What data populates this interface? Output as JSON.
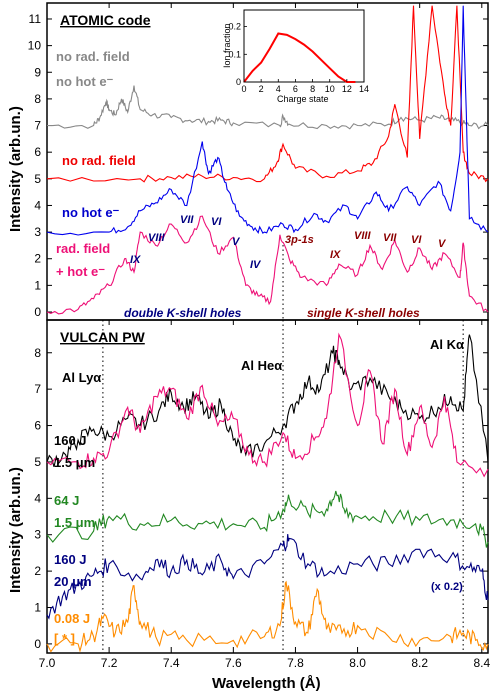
{
  "figure": {
    "xlabel": "Wavelength (Å)",
    "ylabel_top": "Intensity (arb.un.)",
    "ylabel_bottom": "Intensity (arb.un.)",
    "x_ticks": [
      "7.0",
      "7.2",
      "7.4",
      "7.6",
      "7.8",
      "8.0",
      "8.2",
      "8.4"
    ],
    "top_y_ticks": [
      "0",
      "1",
      "2",
      "3",
      "4",
      "5",
      "6",
      "7",
      "8",
      "9",
      "10",
      "11"
    ],
    "bottom_y_ticks": [
      "0",
      "1",
      "2",
      "3",
      "4",
      "5",
      "6",
      "7",
      "8"
    ]
  },
  "top_panel": {
    "title": "ATOMIC code",
    "labels": {
      "no_rad_gray": "no rad. field",
      "no_hot_gray": "no hot e⁻",
      "no_rad_red": "no rad. field",
      "no_hot_blue": "no hot e⁻",
      "rad_field": "rad. field",
      "hot_e": "+ hot e⁻",
      "double_k": "double K-shell holes",
      "single_k": "single K-shell holes",
      "line_3p1s": "3p-1s"
    },
    "roman_double": [
      "VIII",
      "VII",
      "VI",
      "V",
      "IX",
      "IV"
    ],
    "roman_single": [
      "IX",
      "VIII",
      "VII",
      "VI",
      "V"
    ],
    "inset": {
      "ylabel": "Ion fraction",
      "xlabel": "Charge state",
      "x_ticks": [
        "0",
        "2",
        "4",
        "6",
        "8",
        "10",
        "12",
        "14"
      ],
      "y_ticks": [
        "0",
        "0.1",
        "0.2"
      ]
    }
  },
  "bottom_panel": {
    "title": "VULCAN PW",
    "line_labels": {
      "ly": "Al Lyα",
      "he": "Al Heα",
      "ka": "Al Kα"
    },
    "series_labels": [
      {
        "energy": "160 J",
        "size": "1.5 μm"
      },
      {
        "energy": "64 J",
        "size": "1.5 μm"
      },
      {
        "energy": "160 J",
        "size": "20 μm"
      },
      {
        "energy": "0.08 J",
        "size": "[ * ]"
      }
    ],
    "scale_note": "(x 0.2)"
  },
  "chart_data": [
    {
      "type": "line",
      "title": "ATOMIC code",
      "xlabel": "Wavelength (Å)",
      "ylabel": "Intensity (arb.un.)",
      "xlim": [
        7.0,
        8.42
      ],
      "ylim": [
        -0.3,
        11.6
      ],
      "series": [
        {
          "name": "no rad. field / no hot e⁻",
          "color": "#888888",
          "offset": 7,
          "x": [
            7.0,
            7.15,
            7.17,
            7.19,
            7.2,
            7.22,
            7.24,
            7.26,
            7.28,
            7.3,
            7.34,
            7.4,
            7.46,
            7.52,
            7.56,
            7.6,
            7.75,
            7.76,
            7.78,
            7.9,
            8.0,
            8.1,
            8.14,
            8.2,
            8.26,
            8.3,
            8.34,
            8.36,
            8.42
          ],
          "y": [
            7.0,
            7.0,
            7.3,
            7.9,
            7.6,
            7.4,
            8.0,
            7.5,
            8.5,
            7.6,
            7.4,
            7.3,
            7.2,
            7.15,
            7.2,
            7.1,
            7.0,
            7.35,
            7.05,
            7.0,
            7.0,
            7.05,
            7.3,
            7.2,
            7.3,
            7.2,
            7.1,
            7.0,
            7.0
          ]
        },
        {
          "name": "no rad. field",
          "color": "#ff0000",
          "offset": 5,
          "x": [
            7.0,
            7.3,
            7.4,
            7.5,
            7.6,
            7.7,
            7.74,
            7.76,
            7.8,
            7.9,
            8.0,
            8.05,
            8.1,
            8.12,
            8.16,
            8.18,
            8.2,
            8.24,
            8.28,
            8.3,
            8.32,
            8.34,
            8.36,
            8.42
          ],
          "y": [
            5.0,
            5.0,
            5.05,
            5.1,
            5.05,
            5.0,
            5.6,
            6.3,
            5.4,
            5.1,
            5.3,
            5.6,
            6.6,
            7.8,
            5.8,
            11.5,
            6.5,
            11.5,
            8.2,
            7.0,
            11.5,
            6.0,
            5.2,
            5.0
          ]
        },
        {
          "name": "no hot e⁻",
          "color": "#0000ee",
          "offset": 3,
          "x": [
            7.0,
            7.2,
            7.26,
            7.3,
            7.35,
            7.4,
            7.45,
            7.5,
            7.52,
            7.55,
            7.58,
            7.62,
            7.66,
            7.7,
            7.76,
            7.8,
            7.86,
            7.9,
            7.96,
            8.0,
            8.06,
            8.1,
            8.16,
            8.2,
            8.26,
            8.3,
            8.33,
            8.34,
            8.36,
            8.42
          ],
          "y": [
            3.0,
            3.0,
            3.2,
            3.8,
            4.1,
            4.6,
            4.0,
            6.4,
            5.2,
            5.8,
            4.6,
            3.6,
            3.2,
            3.0,
            3.3,
            3.1,
            3.7,
            3.4,
            4.0,
            3.5,
            4.5,
            3.8,
            4.7,
            4.0,
            4.9,
            3.8,
            6.0,
            11.5,
            3.5,
            3.0
          ]
        },
        {
          "name": "rad. field + hot e⁻",
          "color": "#ee1177",
          "offset": 0,
          "x": [
            7.0,
            7.1,
            7.15,
            7.2,
            7.25,
            7.28,
            7.3,
            7.35,
            7.4,
            7.45,
            7.5,
            7.55,
            7.6,
            7.64,
            7.68,
            7.72,
            7.75,
            7.78,
            7.82,
            7.9,
            7.94,
            8.0,
            8.04,
            8.08,
            8.12,
            8.16,
            8.2,
            8.24,
            8.28,
            8.33,
            8.34,
            8.36,
            8.42
          ],
          "y": [
            0.0,
            0.1,
            0.5,
            1.0,
            2.0,
            1.5,
            3.0,
            2.5,
            3.3,
            2.6,
            3.6,
            2.2,
            2.8,
            1.0,
            0.6,
            0.4,
            2.9,
            2.0,
            1.3,
            1.0,
            1.8,
            1.4,
            2.5,
            1.6,
            2.7,
            1.5,
            2.4,
            1.6,
            2.2,
            1.3,
            2.6,
            0.6,
            0.0
          ]
        }
      ]
    },
    {
      "type": "line",
      "title": "",
      "xlabel": "Charge state",
      "ylabel": "Ion fraction",
      "xlim": [
        0,
        14
      ],
      "ylim": [
        0,
        0.26
      ],
      "series": [
        {
          "name": "",
          "color": "#ff0000",
          "x": [
            0,
            1,
            2,
            3,
            4,
            5,
            6,
            7,
            8,
            9,
            10,
            11,
            12,
            13
          ],
          "y": [
            0,
            0.04,
            0.07,
            0.12,
            0.175,
            0.17,
            0.155,
            0.135,
            0.11,
            0.08,
            0.05,
            0.02,
            0.0,
            0.0
          ]
        }
      ]
    },
    {
      "type": "line",
      "title": "VULCAN PW",
      "xlabel": "Wavelength (Å)",
      "ylabel": "Intensity (arb.un.)",
      "xlim": [
        7.0,
        8.42
      ],
      "ylim": [
        -0.25,
        8.9
      ],
      "series": [
        {
          "name": "160 J 1.5 μm",
          "color": "#000000",
          "x": [
            7.0,
            7.06,
            7.1,
            7.15,
            7.2,
            7.26,
            7.3,
            7.36,
            7.4,
            7.44,
            7.48,
            7.52,
            7.56,
            7.6,
            7.64,
            7.7,
            7.76,
            7.8,
            7.84,
            7.88,
            7.92,
            7.94,
            7.98,
            8.04,
            8.1,
            8.14,
            8.2,
            8.26,
            8.3,
            8.34,
            8.36,
            8.42
          ],
          "y": [
            5.0,
            5.2,
            5.6,
            5.9,
            5.7,
            6.2,
            6.0,
            6.4,
            6.9,
            6.5,
            6.8,
            6.2,
            6.6,
            5.6,
            5.2,
            5.5,
            6.0,
            6.6,
            7.2,
            7.0,
            8.0,
            7.8,
            7.0,
            7.3,
            6.8,
            6.5,
            6.2,
            6.5,
            6.8,
            6.4,
            8.5,
            5.0
          ]
        },
        {
          "name": "",
          "color": "#ee1177",
          "x": [
            7.0,
            7.1,
            7.15,
            7.2,
            7.26,
            7.3,
            7.35,
            7.4,
            7.45,
            7.5,
            7.55,
            7.6,
            7.65,
            7.7,
            7.76,
            7.8,
            7.86,
            7.9,
            7.94,
            8.0,
            8.04,
            8.08,
            8.12,
            8.16,
            8.2,
            8.24,
            8.28,
            8.32,
            8.42
          ],
          "y": [
            5.0,
            5.0,
            5.1,
            5.3,
            6.5,
            5.8,
            6.8,
            7.0,
            6.2,
            7.1,
            6.0,
            6.2,
            5.2,
            5.0,
            5.8,
            5.1,
            5.6,
            6.2,
            8.5,
            6.0,
            7.5,
            5.5,
            7.0,
            5.2,
            6.5,
            5.4,
            6.8,
            5.0,
            4.8
          ]
        },
        {
          "name": "64 J 1.5 μm",
          "color": "#228822",
          "x": [
            7.0,
            7.15,
            7.2,
            7.3,
            7.4,
            7.5,
            7.6,
            7.7,
            7.76,
            7.78,
            7.84,
            7.9,
            7.93,
            7.96,
            8.0,
            8.1,
            8.2,
            8.3,
            8.38,
            8.42
          ],
          "y": [
            3.0,
            3.1,
            3.5,
            3.3,
            3.4,
            3.3,
            3.3,
            3.2,
            3.7,
            4.0,
            3.6,
            3.7,
            4.2,
            3.6,
            3.5,
            3.5,
            3.4,
            3.4,
            3.3,
            2.8
          ]
        },
        {
          "name": "160 J 20 μm",
          "color": "#000080",
          "x": [
            7.0,
            7.05,
            7.1,
            7.15,
            7.2,
            7.3,
            7.35,
            7.4,
            7.45,
            7.5,
            7.56,
            7.6,
            7.7,
            7.76,
            7.78,
            7.84,
            7.9,
            8.0,
            8.1,
            8.2,
            8.3,
            8.36,
            8.4,
            8.42
          ],
          "y": [
            0.8,
            1.3,
            1.6,
            1.9,
            2.2,
            1.8,
            2.3,
            2.0,
            2.3,
            1.9,
            2.3,
            1.8,
            2.2,
            2.7,
            2.9,
            2.2,
            1.9,
            2.2,
            2.2,
            2.6,
            2.4,
            2.1,
            2.0,
            1.2
          ]
        },
        {
          "name": "0.08 J",
          "color": "#ff8c00",
          "x": [
            7.0,
            7.1,
            7.15,
            7.18,
            7.22,
            7.26,
            7.28,
            7.3,
            7.35,
            7.45,
            7.6,
            7.7,
            7.75,
            7.77,
            7.8,
            7.84,
            7.87,
            7.9,
            7.95,
            8.0,
            8.1,
            8.2,
            8.3,
            8.34,
            8.38,
            8.42
          ],
          "y": [
            0.0,
            0.0,
            0.2,
            0.7,
            0.3,
            0.6,
            1.6,
            0.6,
            0.2,
            0.1,
            0.1,
            0.2,
            0.5,
            1.7,
            0.6,
            0.3,
            1.5,
            0.4,
            0.3,
            0.5,
            0.2,
            0.1,
            0.2,
            0.3,
            0.1,
            0.0
          ]
        }
      ]
    }
  ]
}
